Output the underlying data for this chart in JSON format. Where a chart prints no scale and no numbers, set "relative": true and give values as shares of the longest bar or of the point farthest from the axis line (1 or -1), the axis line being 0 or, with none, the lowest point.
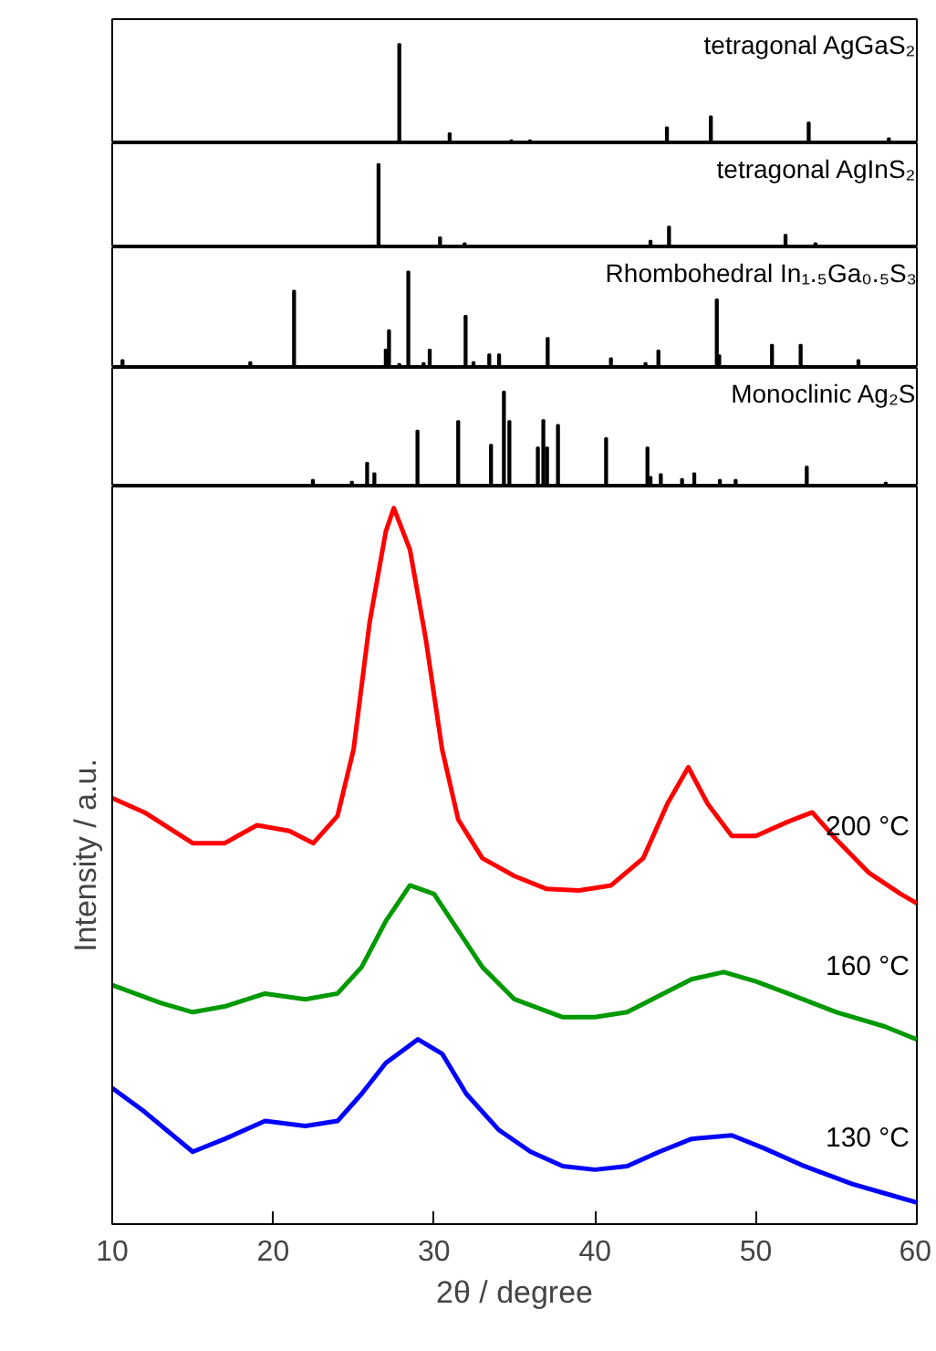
{
  "chart_data": [
    {
      "type": "bar",
      "title": "tetragonal AgGaS₂",
      "color": "#000000",
      "relative": true,
      "xlim": [
        10,
        60
      ],
      "tick_labels": false,
      "x": [
        27.84,
        30.97,
        34.8,
        35.96,
        44.47,
        47.2,
        53.28,
        58.26
      ],
      "values": [
        1.0,
        0.1,
        0.03,
        0.03,
        0.16,
        0.27,
        0.21,
        0.05
      ]
    },
    {
      "type": "bar",
      "title": "tetragonal AgInS₂",
      "color": "#000000",
      "relative": true,
      "xlim": [
        10,
        60
      ],
      "tick_labels": false,
      "x": [
        26.55,
        30.37,
        31.9,
        43.45,
        44.6,
        51.84,
        53.7
      ],
      "values": [
        1.0,
        0.12,
        0.05,
        0.08,
        0.25,
        0.15,
        0.05
      ]
    },
    {
      "type": "bar",
      "title": "Rhombohedral In₁.₅Ga₀.₅S₃",
      "color": "#000000",
      "relative": true,
      "xlim": [
        10,
        60
      ],
      "tick_labels": false,
      "x": [
        10.64,
        18.58,
        21.3,
        27.0,
        27.2,
        27.84,
        28.4,
        29.35,
        29.73,
        31.96,
        32.45,
        33.43,
        34.04,
        37.06,
        40.99,
        43.14,
        43.94,
        47.57,
        47.72,
        51.0,
        52.78,
        56.37
      ],
      "values": [
        0.08,
        0.06,
        0.8,
        0.19,
        0.39,
        0.04,
        1.0,
        0.05,
        0.19,
        0.54,
        0.06,
        0.14,
        0.14,
        0.31,
        0.1,
        0.05,
        0.18,
        0.71,
        0.13,
        0.24,
        0.24,
        0.08
      ]
    },
    {
      "type": "bar",
      "title": "Monoclinic Ag₂S",
      "color": "#000000",
      "relative": true,
      "xlim": [
        10,
        60
      ],
      "tick_labels": false,
      "x": [
        22.47,
        24.89,
        25.84,
        26.29,
        28.97,
        31.5,
        33.54,
        34.34,
        34.68,
        36.45,
        36.79,
        37.02,
        37.7,
        40.69,
        43.26,
        43.45,
        44.09,
        45.41,
        46.17,
        47.76,
        48.74,
        53.16,
        58.07
      ],
      "values": [
        0.07,
        0.05,
        0.25,
        0.14,
        0.59,
        0.69,
        0.44,
        1.0,
        0.69,
        0.41,
        0.7,
        0.41,
        0.65,
        0.51,
        0.41,
        0.1,
        0.13,
        0.08,
        0.14,
        0.07,
        0.07,
        0.21,
        0.04
      ]
    },
    {
      "type": "line",
      "relative": true,
      "xlim": [
        10,
        60
      ],
      "xticks": [
        10,
        20,
        30,
        40,
        50,
        60
      ],
      "tick_labels": "x",
      "xlabel": "2θ / degree",
      "ylabel": "Intensity / a.u.",
      "series": [
        {
          "name": "200 °C",
          "color": "#ff0000",
          "x": [
            10,
            12,
            15,
            17,
            19,
            21,
            22.5,
            24,
            25,
            26,
            27,
            27.5,
            28.5,
            29.5,
            30.5,
            31.5,
            33,
            35,
            37,
            39,
            41,
            43,
            44.5,
            45.8,
            47,
            48.5,
            50,
            52,
            53.5,
            55,
            57,
            59,
            60
          ],
          "values": [
            0.595,
            0.575,
            0.532,
            0.532,
            0.557,
            0.549,
            0.532,
            0.57,
            0.663,
            0.841,
            0.967,
            1.0,
            0.942,
            0.815,
            0.663,
            0.565,
            0.511,
            0.486,
            0.468,
            0.466,
            0.473,
            0.511,
            0.587,
            0.638,
            0.587,
            0.542,
            0.542,
            0.562,
            0.575,
            0.537,
            0.491,
            0.461,
            0.448
          ]
        },
        {
          "name": "160 °C",
          "color": "#009900",
          "x": [
            10,
            13,
            15,
            17,
            19.5,
            22,
            24,
            25.5,
            27,
            28.5,
            30,
            31.5,
            33,
            35,
            38,
            40,
            42,
            44,
            46,
            48,
            50,
            52,
            55,
            58,
            60
          ],
          "values": [
            0.334,
            0.309,
            0.296,
            0.304,
            0.322,
            0.314,
            0.322,
            0.359,
            0.423,
            0.473,
            0.461,
            0.41,
            0.359,
            0.314,
            0.289,
            0.289,
            0.296,
            0.319,
            0.342,
            0.352,
            0.339,
            0.322,
            0.296,
            0.276,
            0.258
          ]
        },
        {
          "name": "130 °C",
          "color": "#0000ff",
          "x": [
            10,
            12,
            15,
            17,
            19.5,
            22,
            24,
            25.5,
            27,
            29,
            30.5,
            32,
            34,
            36,
            38,
            40,
            42,
            44,
            46,
            48.5,
            50.5,
            53,
            56,
            58,
            60
          ],
          "values": [
            0.19,
            0.157,
            0.101,
            0.119,
            0.144,
            0.137,
            0.144,
            0.182,
            0.225,
            0.258,
            0.238,
            0.182,
            0.132,
            0.101,
            0.081,
            0.076,
            0.081,
            0.101,
            0.119,
            0.124,
            0.106,
            0.081,
            0.056,
            0.043,
            0.03
          ]
        }
      ]
    }
  ]
}
